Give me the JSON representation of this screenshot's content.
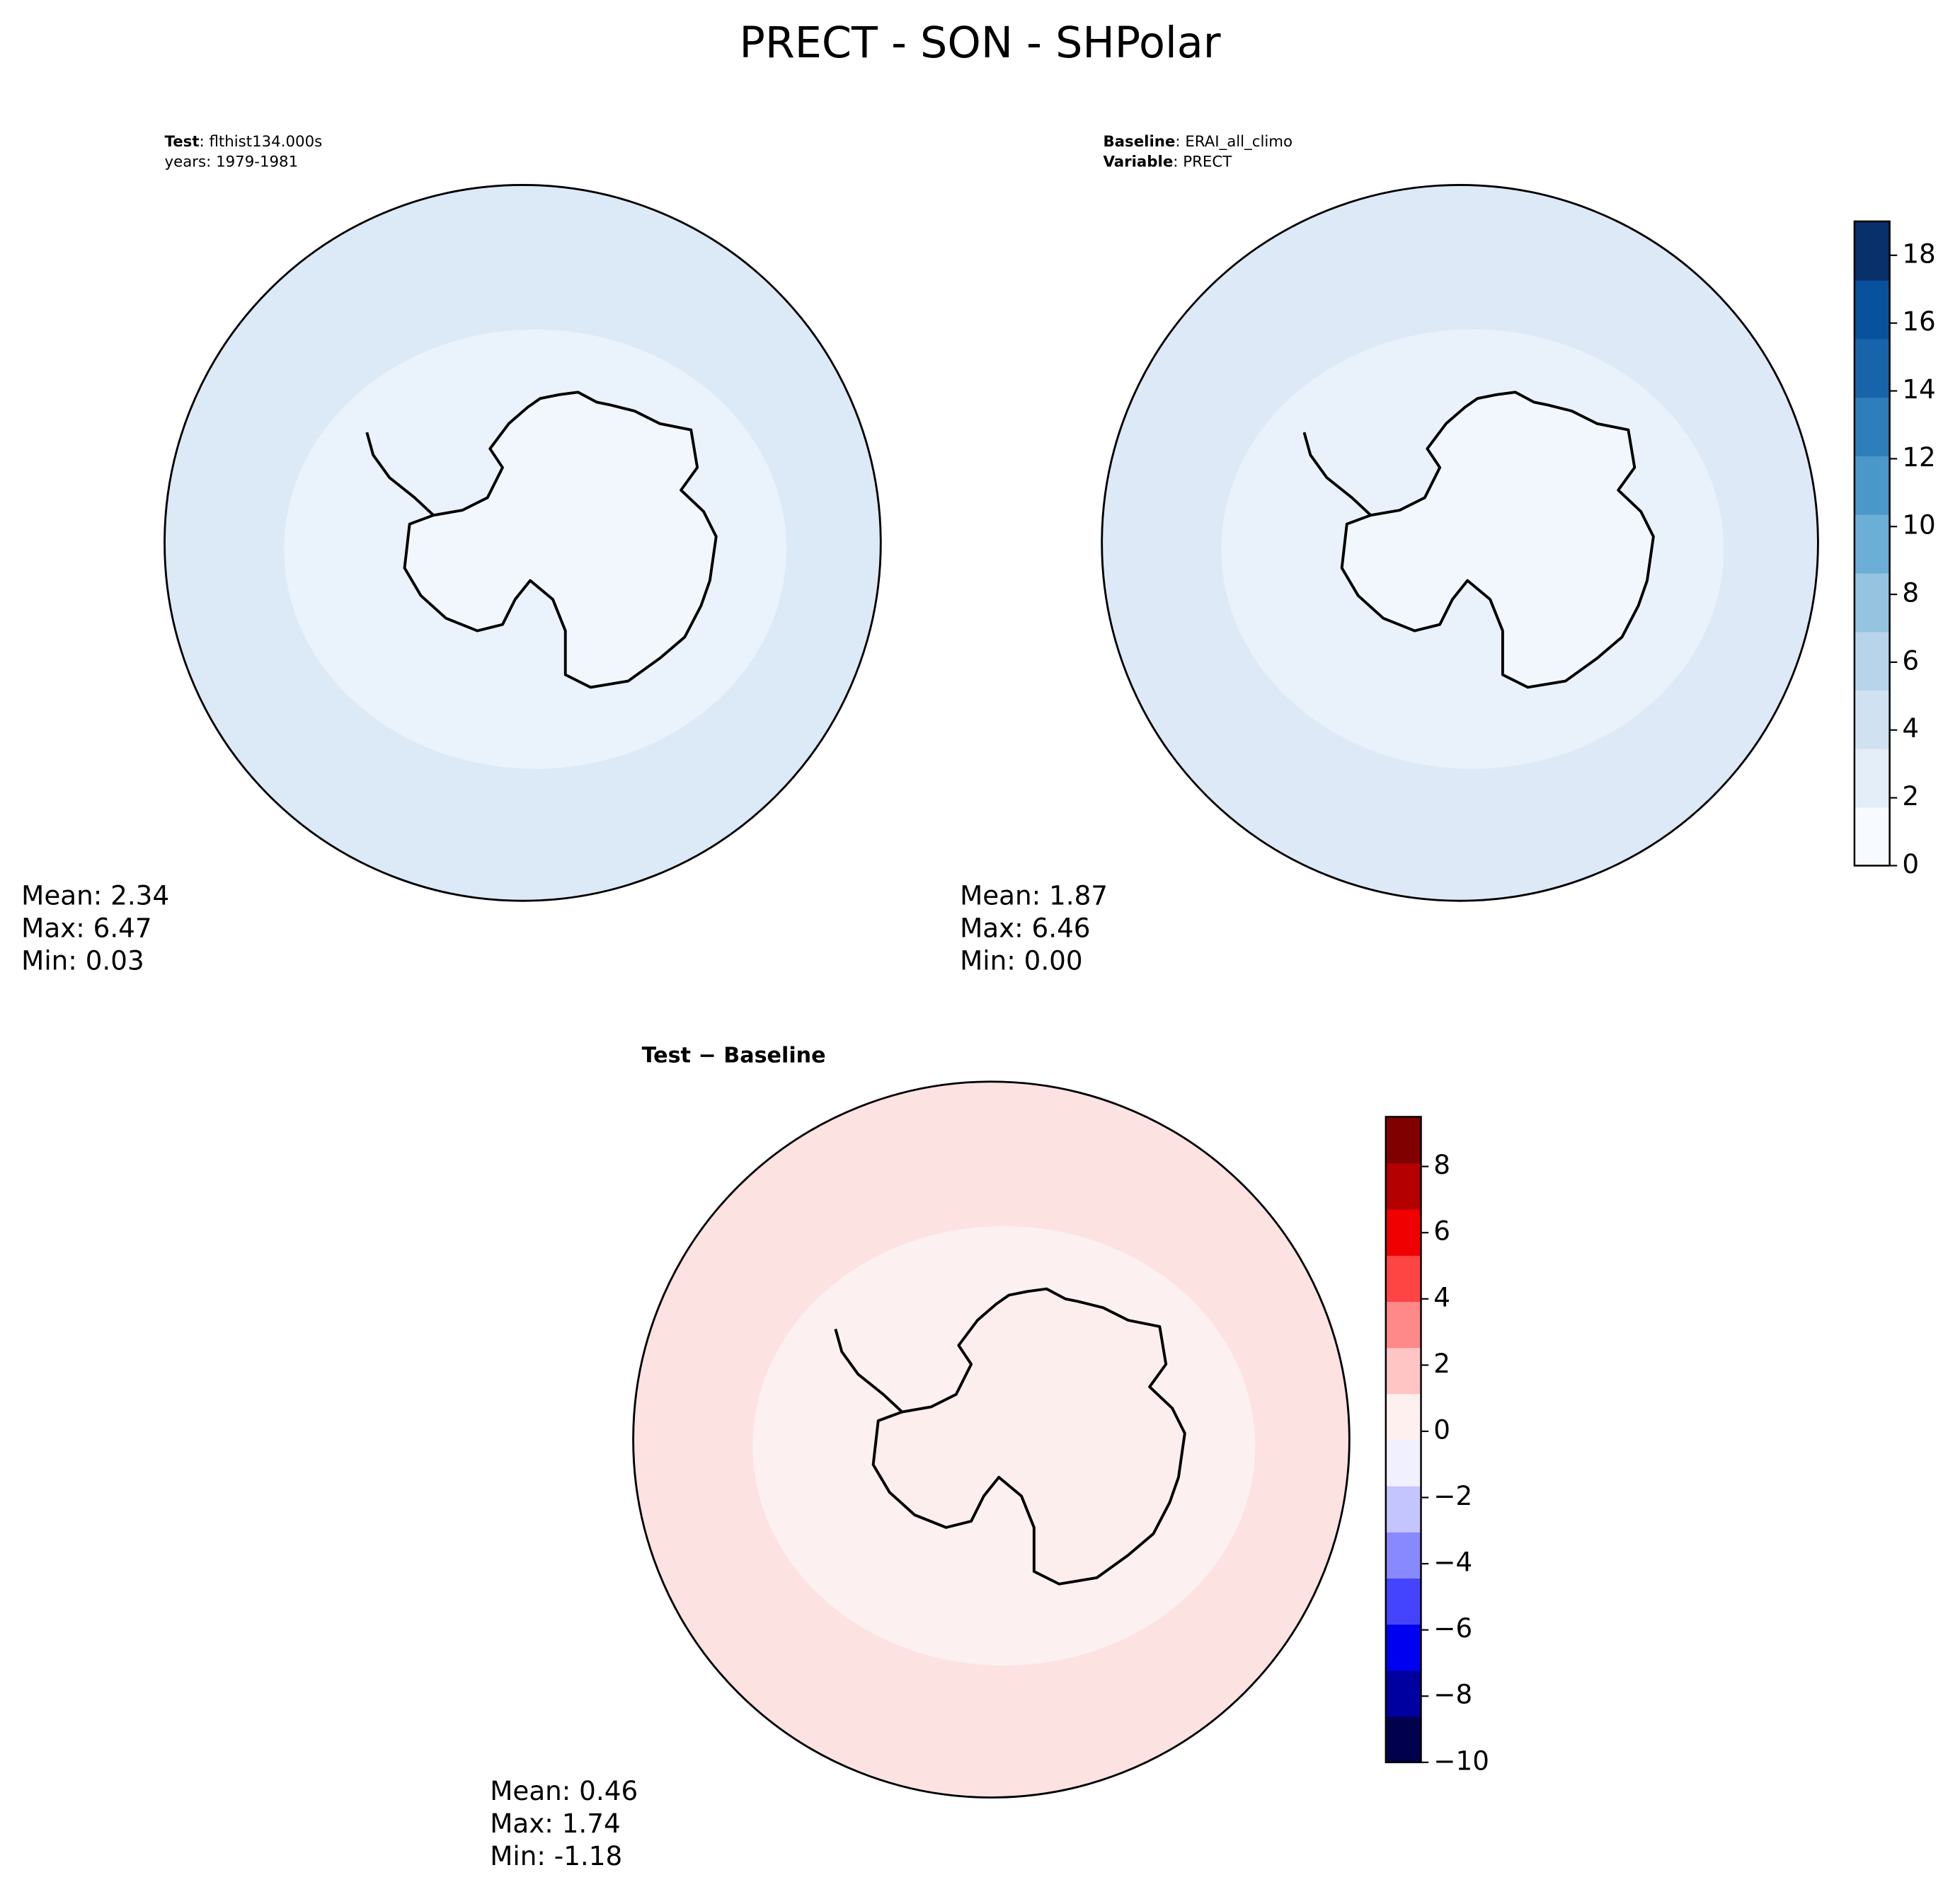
{
  "chart_data": [
    {
      "type": "map",
      "title": "PRECT - SON - SHPolar",
      "header": [
        {
          "key": "Test",
          "text": ": flthist134.000s"
        },
        {
          "text": "years: 1979-1981"
        }
      ],
      "stats": [
        "Mean:  2.34",
        "Max:  6.47",
        "Min:  0.03"
      ],
      "ocean_color": "#dce9f6",
      "inner_color": "#eaf2fb"
    },
    {
      "type": "map",
      "header": [
        {
          "key": "Baseline",
          "text": ": ERAI_all_climo"
        },
        {
          "key": "Variable",
          "text": ": PRECT"
        }
      ],
      "stats": [
        "Mean:  1.87",
        "Max:  6.46",
        "Min:  0.00"
      ],
      "ocean_color": "#dde9f6",
      "inner_color": "#e9f1fa",
      "colorbar": {
        "ylim": [
          0,
          19
        ],
        "yticks": [
          0,
          2,
          4,
          6,
          8,
          10,
          12,
          14,
          16,
          18
        ],
        "colors": [
          "#f7fbff",
          "#e3eef9",
          "#d0e1f2",
          "#b7d4ea",
          "#94c4df",
          "#6baed6",
          "#4a98c9",
          "#2e7ebc",
          "#1764ab",
          "#08519c",
          "#08306b"
        ]
      }
    },
    {
      "type": "map",
      "title": "Test − Baseline",
      "stats": [
        "Mean:  0.46",
        "Max:  1.74",
        "Min: -1.18"
      ],
      "ocean_color": "#fde2e2",
      "inner_color": "#fdf0f0",
      "colorbar": {
        "ylim": [
          -10,
          9.5
        ],
        "yticks": [
          {
            "value": -10,
            "label": "−10"
          },
          {
            "value": -8,
            "label": "−8"
          },
          {
            "value": -6,
            "label": "−6"
          },
          {
            "value": -4,
            "label": "−4"
          },
          {
            "value": -2,
            "label": "−2"
          },
          0,
          2,
          4,
          6,
          8
        ],
        "colors": [
          "#00004c",
          "#0000a0",
          "#0000f0",
          "#4444ff",
          "#8888ff",
          "#c4c4ff",
          "#f0f0ff",
          "#fff0f0",
          "#ffc4c4",
          "#ff8888",
          "#ff4444",
          "#f00000",
          "#b40000",
          "#800000"
        ]
      }
    }
  ]
}
